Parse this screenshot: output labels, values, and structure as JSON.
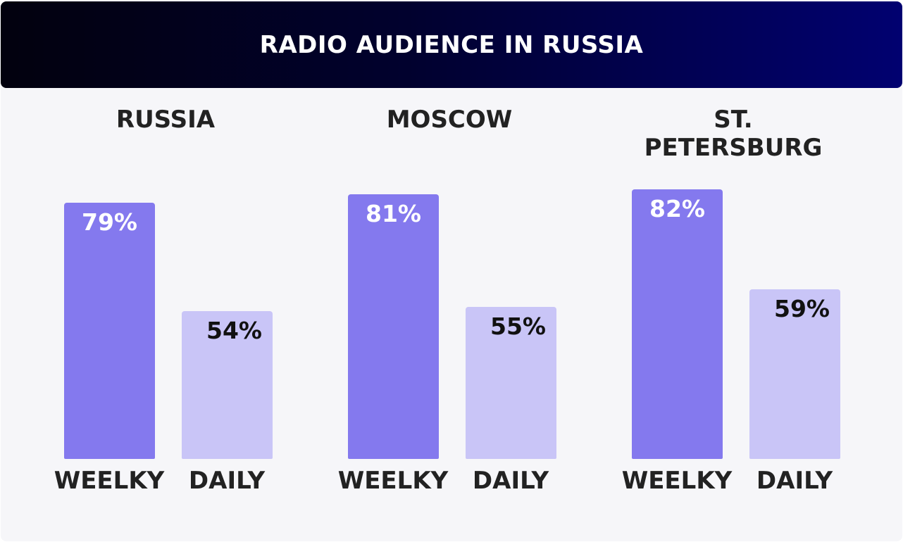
{
  "chart_data": {
    "type": "bar",
    "title": "RADIO AUDIENCE IN RUSSIA",
    "groups": [
      "RUSSIA",
      "MOSCOW",
      "ST. PETERSBURG"
    ],
    "categories": [
      "WEELKY",
      "DAILY"
    ],
    "series": [
      {
        "values": [
          79,
          54
        ]
      },
      {
        "values": [
          81,
          55
        ]
      },
      {
        "values": [
          82,
          59
        ]
      }
    ],
    "data_labels": [
      [
        "79%",
        "54%"
      ],
      [
        "81%",
        "55%"
      ],
      [
        "82%",
        "59%"
      ]
    ],
    "ylim": [
      20,
      90
    ],
    "grid": false,
    "colors": {
      "weekly": "#8479ee",
      "daily": "#c9c5f7",
      "header_start": "#02010e",
      "header_end": "#010170"
    }
  }
}
